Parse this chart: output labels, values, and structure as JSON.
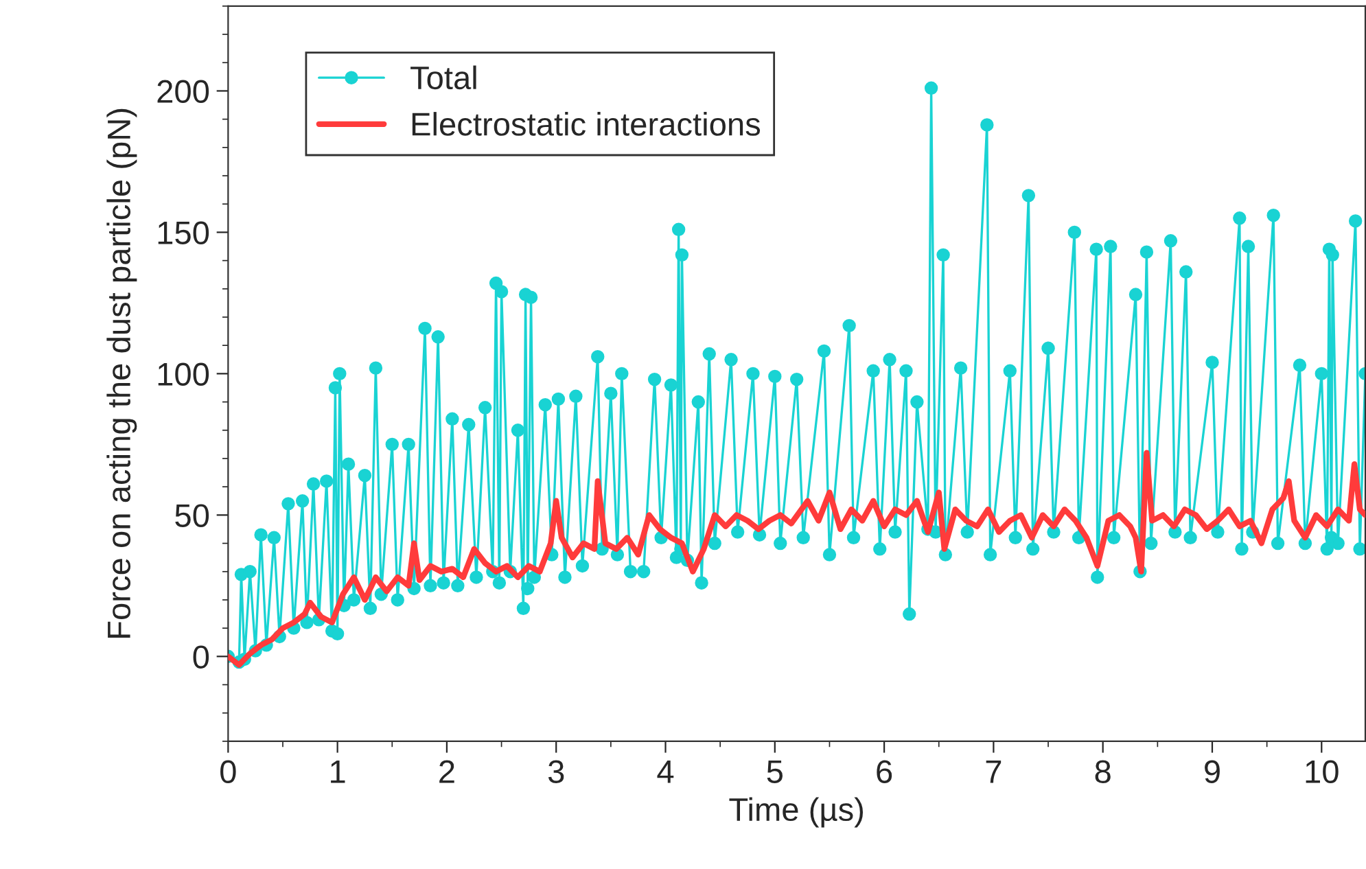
{
  "chart_data": {
    "type": "line",
    "xlabel": "Time (µs)",
    "ylabel": "Force on acting the dust particle (pN)",
    "xlim": [
      0,
      10.4
    ],
    "xticks": [
      0,
      1,
      2,
      3,
      4,
      5,
      6,
      7,
      8,
      9,
      10
    ],
    "ylim": [
      -30,
      230
    ],
    "yticks": [
      0,
      50,
      100,
      150,
      200
    ],
    "grid": false,
    "legend": "top left",
    "series": [
      {
        "name": "Total",
        "color": "#19d3d3",
        "marker": "circle",
        "x": [
          0,
          0.1,
          0.12,
          0.15,
          0.2,
          0.25,
          0.3,
          0.35,
          0.42,
          0.47,
          0.55,
          0.6,
          0.68,
          0.72,
          0.78,
          0.83,
          0.9,
          0.95,
          0.98,
          1.0,
          1.02,
          1.06,
          1.1,
          1.15,
          1.25,
          1.3,
          1.35,
          1.4,
          1.5,
          1.55,
          1.65,
          1.7,
          1.8,
          1.85,
          1.92,
          1.97,
          2.05,
          2.1,
          2.2,
          2.27,
          2.35,
          2.42,
          2.45,
          2.48,
          2.5,
          2.58,
          2.65,
          2.7,
          2.72,
          2.74,
          2.77,
          2.8,
          2.9,
          2.96,
          3.02,
          3.08,
          3.18,
          3.24,
          3.38,
          3.42,
          3.5,
          3.56,
          3.6,
          3.68,
          3.78,
          3.8,
          3.9,
          3.96,
          4.05,
          4.1,
          4.12,
          4.14,
          4.15,
          4.2,
          4.3,
          4.33,
          4.4,
          4.45,
          4.6,
          4.66,
          4.8,
          4.86,
          5.0,
          5.05,
          5.2,
          5.26,
          5.45,
          5.5,
          5.68,
          5.72,
          5.9,
          5.96,
          6.05,
          6.1,
          6.2,
          6.23,
          6.3,
          6.4,
          6.43,
          6.47,
          6.54,
          6.56,
          6.7,
          6.76,
          6.94,
          6.97,
          7.15,
          7.2,
          7.32,
          7.36,
          7.5,
          7.55,
          7.74,
          7.78,
          7.94,
          7.95,
          8.07,
          8.1,
          8.3,
          8.34,
          8.4,
          8.44,
          8.62,
          8.66,
          8.76,
          8.8,
          9.0,
          9.05,
          9.25,
          9.27,
          9.33,
          9.37,
          9.56,
          9.6,
          9.8,
          9.85,
          10.0,
          10.05,
          10.07,
          10.09,
          10.1,
          10.15,
          10.31,
          10.35,
          10.4
        ],
        "values": [
          0,
          -2,
          29,
          -1,
          30,
          2,
          43,
          4,
          42,
          7,
          54,
          10,
          55,
          12,
          61,
          13,
          62,
          9,
          95,
          8,
          100,
          18,
          68,
          20,
          64,
          17,
          102,
          22,
          75,
          20,
          75,
          24,
          116,
          25,
          113,
          26,
          84,
          25,
          82,
          28,
          88,
          30,
          132,
          26,
          129,
          30,
          80,
          17,
          128,
          24,
          127,
          28,
          89,
          36,
          91,
          28,
          92,
          32,
          106,
          38,
          93,
          36,
          100,
          30,
          null,
          30,
          98,
          42,
          96,
          35,
          151,
          38,
          142,
          34,
          90,
          26,
          107,
          40,
          105,
          44,
          100,
          43,
          99,
          40,
          98,
          42,
          108,
          36,
          117,
          42,
          101,
          38,
          105,
          44,
          101,
          15,
          90,
          45,
          201,
          44,
          142,
          36,
          102,
          44,
          188,
          36,
          101,
          42,
          163,
          38,
          109,
          44,
          150,
          42,
          144,
          28,
          145,
          42,
          128,
          30,
          143,
          40,
          147,
          44,
          136,
          42,
          104,
          44,
          155,
          38,
          145,
          44,
          156,
          40,
          103,
          40,
          100,
          38,
          144,
          42,
          142,
          40,
          154,
          38,
          100
        ]
      },
      {
        "name": "Electrostatic interactions",
        "color": "#ff3b3b",
        "marker": "none",
        "x": [
          0,
          0.1,
          0.2,
          0.3,
          0.4,
          0.5,
          0.6,
          0.7,
          0.75,
          0.85,
          0.95,
          1.05,
          1.15,
          1.25,
          1.35,
          1.45,
          1.55,
          1.65,
          1.7,
          1.75,
          1.85,
          1.95,
          2.05,
          2.15,
          2.25,
          2.35,
          2.45,
          2.55,
          2.65,
          2.75,
          2.85,
          2.95,
          3.0,
          3.05,
          3.15,
          3.25,
          3.35,
          3.38,
          3.45,
          3.55,
          3.65,
          3.75,
          3.85,
          3.95,
          4.05,
          4.15,
          4.25,
          4.35,
          4.45,
          4.55,
          4.65,
          4.75,
          4.85,
          4.95,
          5.05,
          5.15,
          5.3,
          5.4,
          5.5,
          5.6,
          5.7,
          5.8,
          5.9,
          6.0,
          6.1,
          6.2,
          6.3,
          6.4,
          6.5,
          6.55,
          6.65,
          6.75,
          6.85,
          6.95,
          7.05,
          7.15,
          7.25,
          7.35,
          7.45,
          7.55,
          7.65,
          7.75,
          7.85,
          7.95,
          8.05,
          8.15,
          8.25,
          8.3,
          8.35,
          8.4,
          8.45,
          8.55,
          8.65,
          8.75,
          8.85,
          8.95,
          9.05,
          9.15,
          9.25,
          9.35,
          9.45,
          9.55,
          9.65,
          9.7,
          9.75,
          9.85,
          9.95,
          10.05,
          10.15,
          10.25,
          10.3,
          10.35,
          10.4
        ],
        "values": [
          0,
          -3,
          1,
          4,
          6,
          10,
          12,
          15,
          19,
          14,
          12,
          22,
          28,
          20,
          28,
          23,
          28,
          25,
          40,
          27,
          32,
          30,
          31,
          28,
          38,
          33,
          30,
          32,
          28,
          32,
          30,
          40,
          55,
          42,
          35,
          40,
          38,
          62,
          40,
          38,
          42,
          36,
          50,
          45,
          42,
          40,
          30,
          38,
          50,
          46,
          50,
          48,
          45,
          48,
          50,
          47,
          55,
          48,
          58,
          45,
          52,
          48,
          55,
          46,
          52,
          50,
          55,
          44,
          58,
          38,
          52,
          48,
          46,
          52,
          44,
          48,
          50,
          42,
          50,
          46,
          52,
          48,
          42,
          32,
          48,
          50,
          46,
          42,
          30,
          72,
          48,
          50,
          46,
          52,
          50,
          45,
          48,
          52,
          46,
          48,
          40,
          52,
          56,
          62,
          48,
          42,
          50,
          46,
          52,
          48,
          68,
          52,
          50
        ]
      }
    ]
  }
}
